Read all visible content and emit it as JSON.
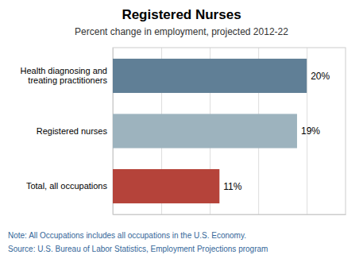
{
  "chart_data": {
    "type": "bar",
    "orientation": "horizontal",
    "title": "Registered Nurses",
    "subtitle": "Percent change in employment, projected 2012-22",
    "categories": [
      "Total, all occupations",
      "Registered nurses",
      "Health diagnosing and\ntreating practitioners"
    ],
    "values": [
      11,
      19,
      20
    ],
    "colors": [
      "#b5433a",
      "#9db3be",
      "#607f96"
    ],
    "data_labels": true,
    "value_labels": [
      "11%",
      "19%",
      "20%"
    ],
    "xlim": [
      0,
      24
    ],
    "xticks": [
      0,
      5,
      10,
      15,
      20
    ],
    "grid": true,
    "tick_labels": "y",
    "annotations": [
      "Note: All Occupations includes all occupations in the U.S. Economy.",
      "Source: U.S. Bureau of Labor Statistics, Employment Projections program"
    ]
  }
}
